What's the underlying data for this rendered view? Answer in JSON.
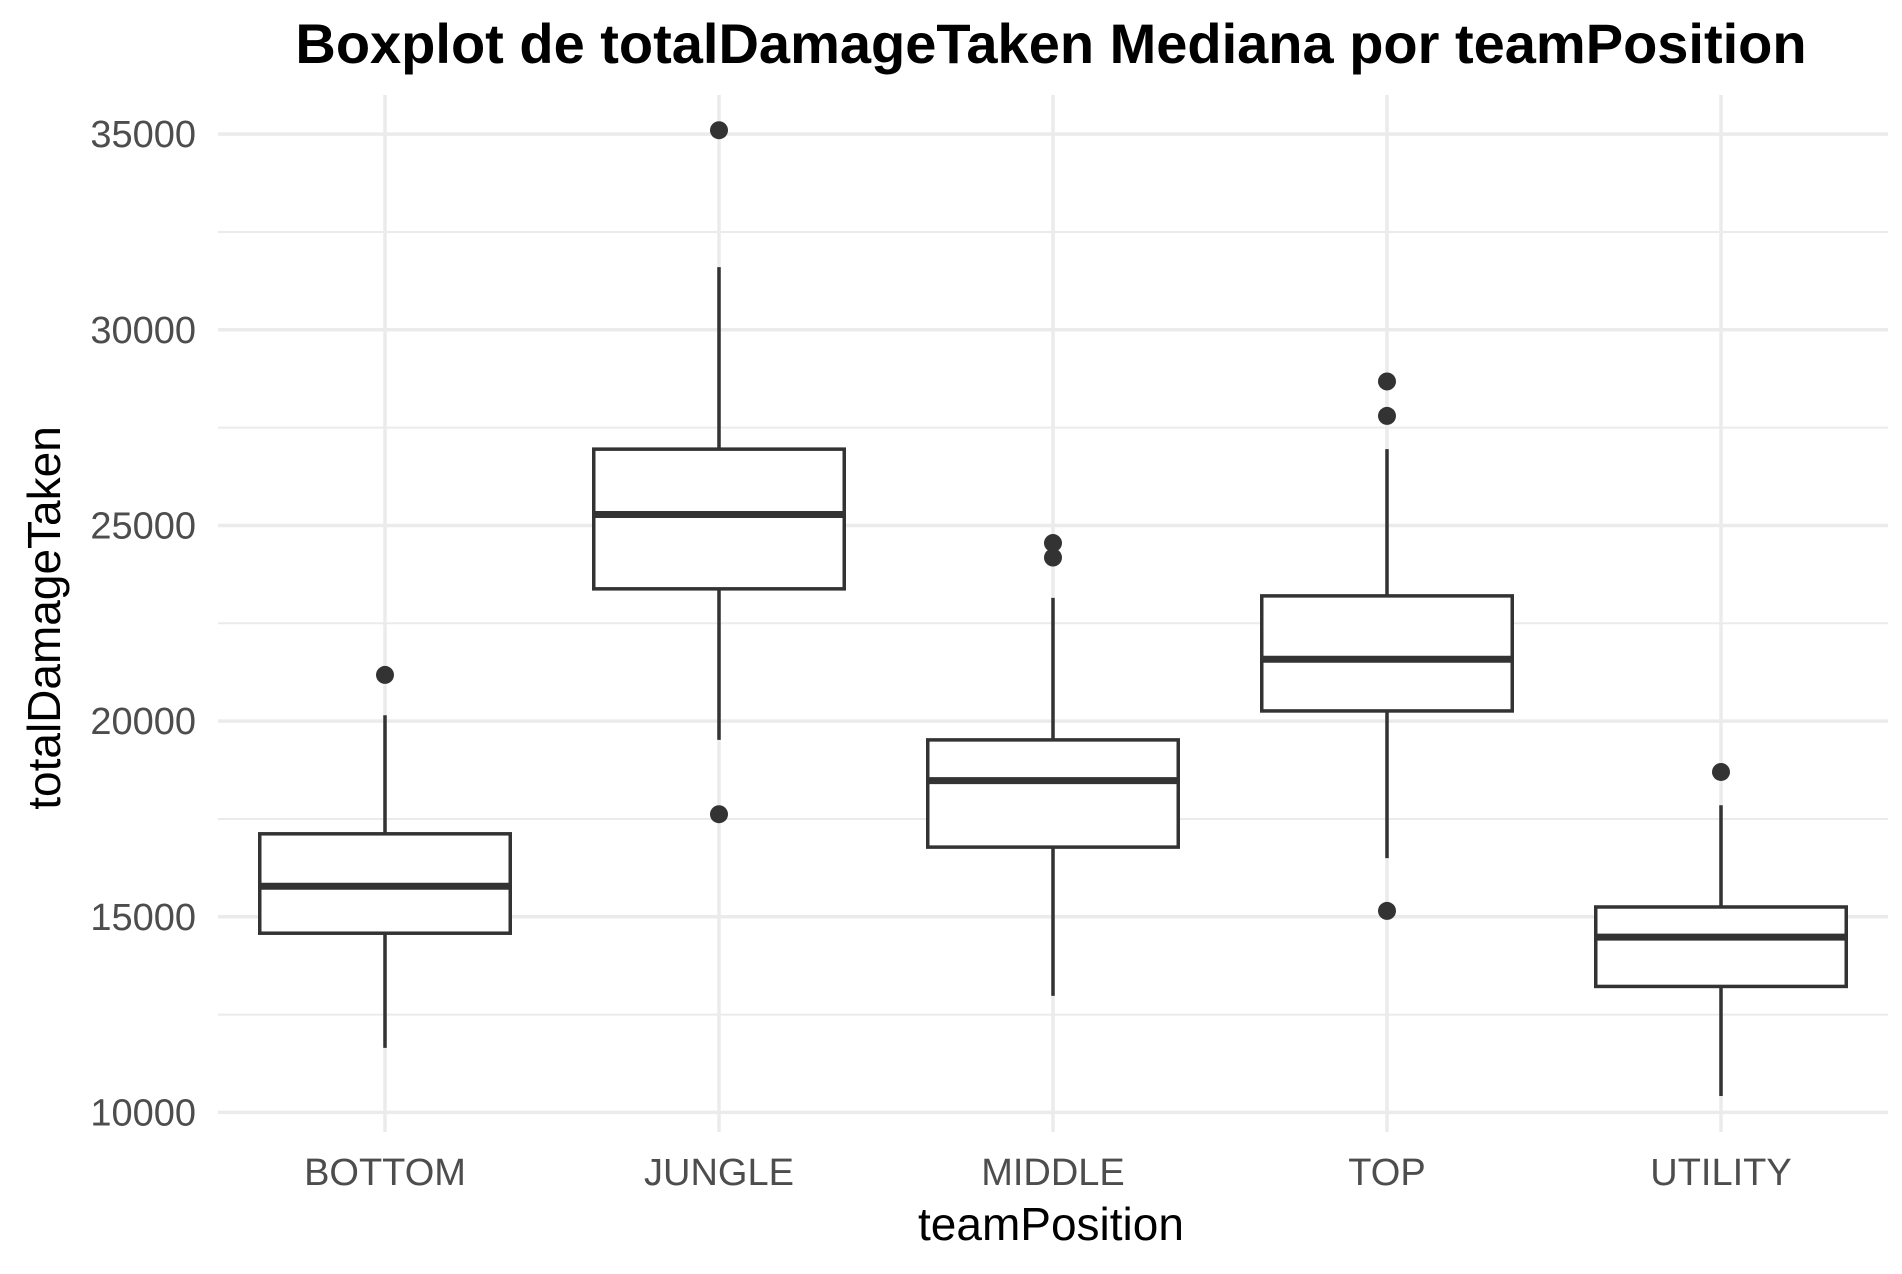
{
  "chart_data": {
    "type": "boxplot",
    "title": "Boxplot de totalDamageTaken Mediana por teamPosition",
    "xlabel": "teamPosition",
    "ylabel": "totalDamageTaken",
    "ylim": [
      9500,
      36000
    ],
    "yticks": [
      10000,
      15000,
      20000,
      25000,
      30000,
      35000
    ],
    "ytick_labels": [
      "10000",
      "15000",
      "20000",
      "25000",
      "30000",
      "35000"
    ],
    "grid": true,
    "legend": "none",
    "colors": {
      "box_stroke": "#333333",
      "grid": "#ebebeb",
      "tick_text": "#4d4d4d"
    },
    "categories": [
      "BOTTOM",
      "JUNGLE",
      "MIDDLE",
      "TOP",
      "UTILITY"
    ],
    "boxes": [
      {
        "category": "BOTTOM",
        "whisker_low": 11650,
        "q1": 14580,
        "median": 15780,
        "q3": 17120,
        "whisker_high": 20150,
        "outliers": [
          21180
        ]
      },
      {
        "category": "JUNGLE",
        "whisker_low": 19520,
        "q1": 23380,
        "median": 25280,
        "q3": 26950,
        "whisker_high": 31600,
        "outliers": [
          35100,
          17620
        ]
      },
      {
        "category": "MIDDLE",
        "whisker_low": 12980,
        "q1": 16780,
        "median": 18480,
        "q3": 19520,
        "whisker_high": 23150,
        "outliers": [
          24550,
          24180
        ]
      },
      {
        "category": "TOP",
        "whisker_low": 16500,
        "q1": 20260,
        "median": 21580,
        "q3": 23200,
        "whisker_high": 26950,
        "outliers": [
          28680,
          27800,
          15150
        ]
      },
      {
        "category": "UTILITY",
        "whisker_low": 10420,
        "q1": 13220,
        "median": 14480,
        "q3": 15250,
        "whisker_high": 17850,
        "outliers": [
          18700
        ]
      }
    ]
  }
}
